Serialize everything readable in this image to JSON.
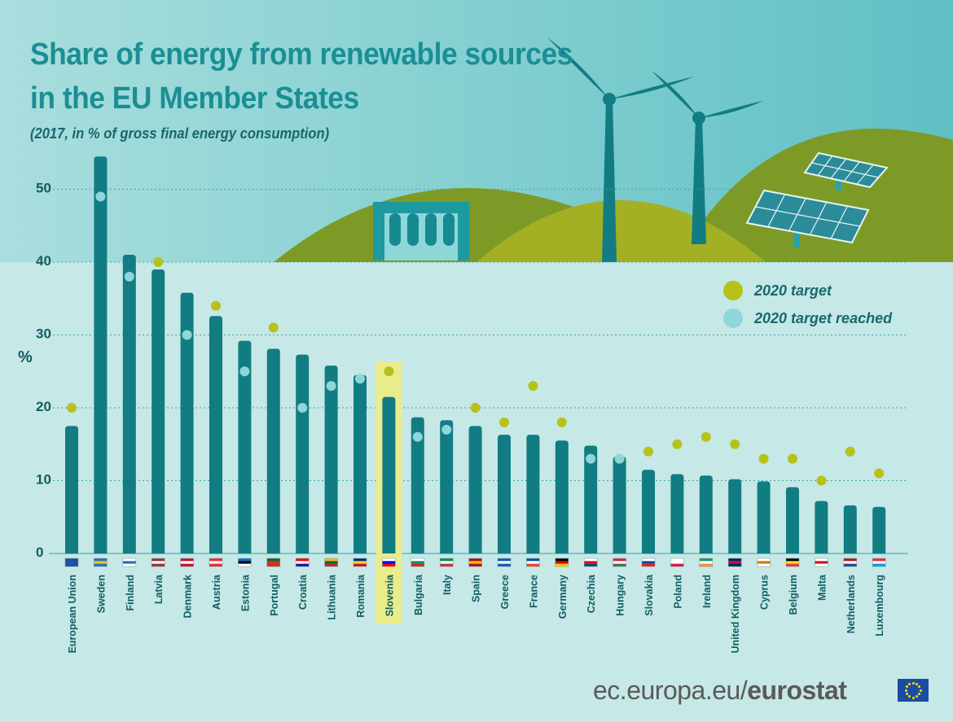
{
  "title": {
    "line1": "Share of energy from renewable sources",
    "line2": "in the EU Member States"
  },
  "subtitle": "(2017, in % of gross final energy consumption)",
  "legend": {
    "target_label": "2020 target",
    "reached_label": "2020 target reached"
  },
  "footer": {
    "site": "ec.europa.eu/",
    "brand": "eurostat"
  },
  "colors": {
    "background": "#c6e8e6",
    "bar": "#127c83",
    "target_dot": "#b6c11a",
    "reached_dot": "#8fd6d8",
    "highlight": "#e9ec8a",
    "hill_dark": "#7d9a26",
    "hill_light": "#a3b024"
  },
  "chart_data": {
    "type": "bar",
    "title": "Share of energy from renewable sources in the EU Member States",
    "subtitle": "(2017, in % of gross final energy consumption)",
    "ylabel": "%",
    "xlabel": "",
    "ylim": [
      0,
      55
    ],
    "yticks": [
      0,
      10,
      20,
      30,
      40,
      50
    ],
    "grid": true,
    "highlighted_category": "Slovenia",
    "categories": [
      "European Union",
      "Sweden",
      "Finland",
      "Latvia",
      "Denmark",
      "Austria",
      "Estonia",
      "Portugal",
      "Croatia",
      "Lithuania",
      "Romania",
      "Slovenia",
      "Bulgaria",
      "Italy",
      "Spain",
      "Greece",
      "France",
      "Germany",
      "Czechia",
      "Hungary",
      "Slovakia",
      "Poland",
      "Ireland",
      "United Kingdom",
      "Cyprus",
      "Belgium",
      "Malta",
      "Netherlands",
      "Luxembourg"
    ],
    "series": [
      {
        "type": "bar",
        "values": [
          17.5,
          54.5,
          41.0,
          39.0,
          35.8,
          32.6,
          29.2,
          28.1,
          27.3,
          25.8,
          24.5,
          21.5,
          18.7,
          18.3,
          17.5,
          16.3,
          16.3,
          15.5,
          14.8,
          13.3,
          11.5,
          10.9,
          10.7,
          10.2,
          9.9,
          9.1,
          7.2,
          6.6,
          6.4
        ]
      },
      {
        "name": "2020 target",
        "type": "marker",
        "values": [
          20,
          null,
          null,
          40,
          null,
          34,
          null,
          31,
          null,
          null,
          null,
          25,
          null,
          null,
          20,
          18,
          23,
          18,
          null,
          null,
          14,
          15,
          16,
          15,
          13,
          13,
          10,
          14,
          11
        ]
      },
      {
        "name": "2020 target reached",
        "type": "marker",
        "values": [
          null,
          49,
          38,
          null,
          30,
          null,
          25,
          null,
          20,
          23,
          24,
          null,
          16,
          17,
          null,
          null,
          null,
          null,
          13,
          13,
          null,
          null,
          null,
          null,
          null,
          null,
          null,
          null,
          null
        ]
      }
    ]
  }
}
